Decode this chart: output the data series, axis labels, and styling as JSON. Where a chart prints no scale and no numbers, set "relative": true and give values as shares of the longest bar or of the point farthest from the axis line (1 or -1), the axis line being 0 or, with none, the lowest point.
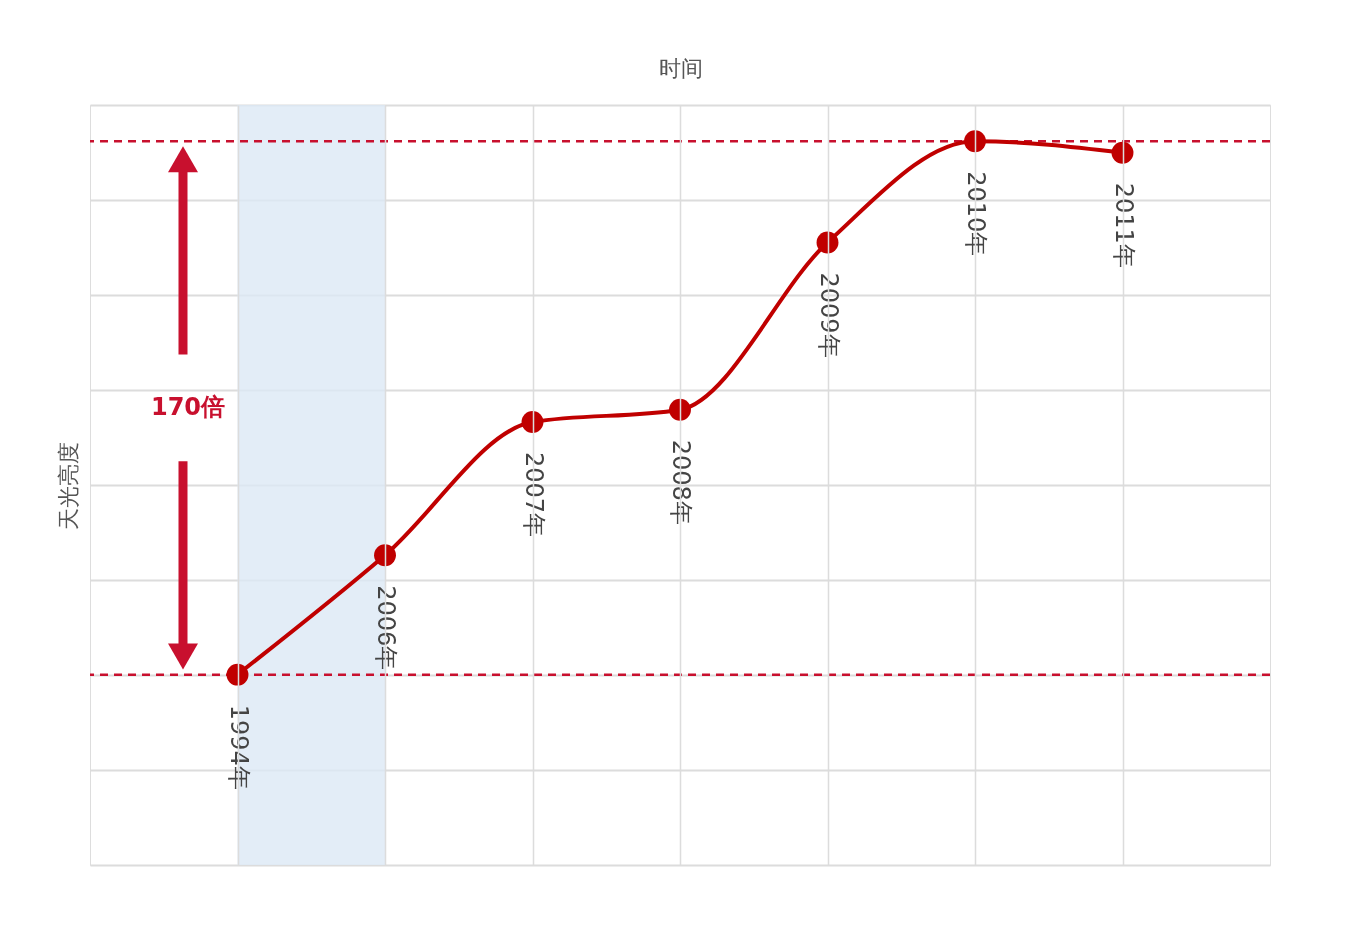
{
  "chart_data": {
    "type": "line",
    "xlabel": "时间",
    "ylabel": "天光亮度",
    "relative": true,
    "grid": true,
    "marker": "circle",
    "line_style": "solid",
    "categories": [
      "1994年",
      "2006年",
      "2007年",
      "2008年",
      "2009年",
      "2010年",
      "2011年"
    ],
    "series": [
      {
        "color": "#c00000",
        "values": [
          0.263,
          0.428,
          0.612,
          0.629,
          0.86,
          1,
          0.984
        ]
      }
    ],
    "bands": [
      {
        "axis": "x",
        "from": "1994年",
        "to": "2006年",
        "color": "#dce8f5"
      }
    ],
    "ref_lines": [
      {
        "axis": "y",
        "value": 1,
        "color": "#c8102e",
        "line_style": "dashed"
      },
      {
        "axis": "y",
        "value": 0.263,
        "color": "#c8102e",
        "line_style": "dashed"
      }
    ],
    "annotations": [
      "170倍"
    ]
  }
}
